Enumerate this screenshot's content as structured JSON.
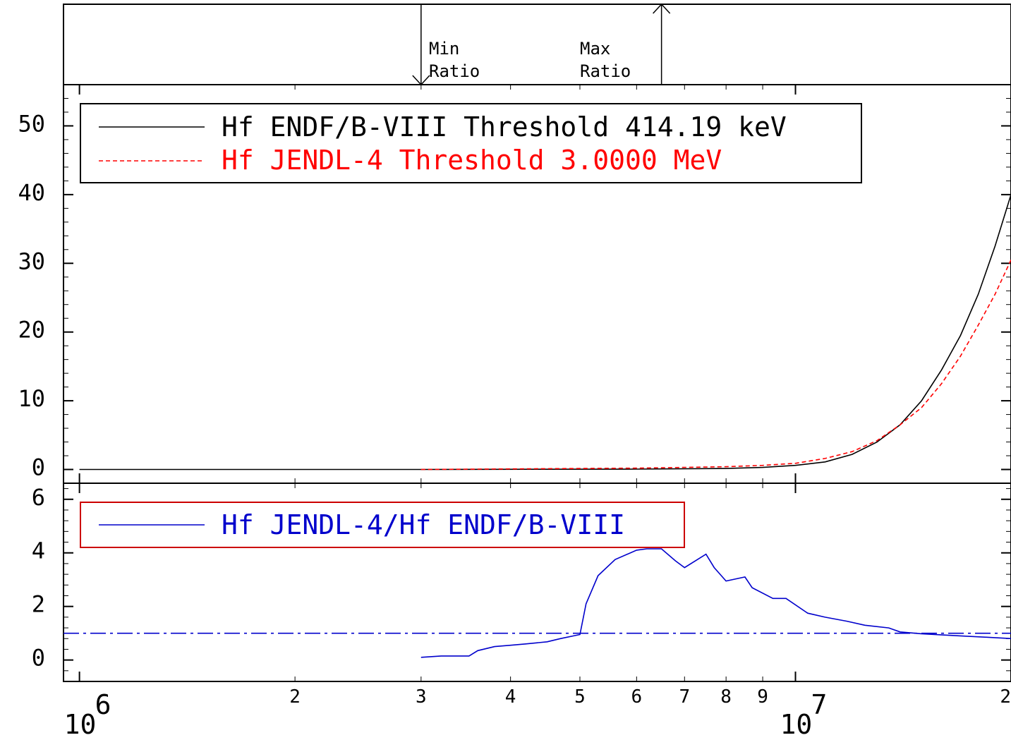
{
  "markers": {
    "min_line1": "Min",
    "min_line2": "Ratio",
    "max_line1": "Max",
    "max_line2": "Ratio",
    "min_energy": 3000000,
    "max_energy": 6500000
  },
  "x_axis": {
    "scale": "log",
    "range": [
      950000,
      20000000
    ],
    "decade_labels": [
      {
        "base": "10",
        "exp": "6",
        "value": 1000000
      },
      {
        "base": "10",
        "exp": "7",
        "value": 10000000
      }
    ],
    "minor_labels": [
      {
        "text": "2",
        "value": 2000000
      },
      {
        "text": "3",
        "value": 3000000
      },
      {
        "text": "4",
        "value": 4000000
      },
      {
        "text": "5",
        "value": 5000000
      },
      {
        "text": "6",
        "value": 6000000
      },
      {
        "text": "7",
        "value": 7000000
      },
      {
        "text": "8",
        "value": 8000000
      },
      {
        "text": "9",
        "value": 9000000
      },
      {
        "text": "2",
        "value": 20000000
      }
    ]
  },
  "colors": {
    "endf": "#000000",
    "jendl": "#ff0000",
    "ratio": "#0000cc",
    "ratio_legend_border": "#cc0000"
  },
  "chart_data": [
    {
      "type": "line",
      "ylim": [
        -2,
        56
      ],
      "y_ticks": [
        "0",
        "10",
        "20",
        "30",
        "40",
        "50"
      ],
      "y_tick_values": [
        0,
        10,
        20,
        30,
        40,
        50
      ],
      "legend_position": "top-left",
      "series": [
        {
          "name": "Hf ENDF/B-VIII Threshold 414.19 keV",
          "style": "solid",
          "x": [
            1000000,
            3000000,
            6000000,
            8000000,
            9000000,
            10000000,
            11000000,
            12000000,
            13000000,
            14000000,
            15000000,
            16000000,
            17000000,
            18000000,
            19000000,
            20000000
          ],
          "y": [
            0,
            0,
            0.05,
            0.15,
            0.3,
            0.6,
            1.1,
            2.2,
            4.0,
            6.5,
            10.0,
            14.5,
            19.5,
            25.5,
            32.5,
            40.0
          ]
        },
        {
          "name": "Hf JENDL-4 Threshold 3.0000 MeV",
          "style": "dashed",
          "x": [
            3000000,
            6000000,
            8000000,
            9000000,
            10000000,
            11000000,
            12000000,
            13000000,
            14000000,
            15000000,
            16000000,
            17000000,
            18000000,
            19000000,
            20000000
          ],
          "y": [
            0,
            0.2,
            0.4,
            0.6,
            0.9,
            1.6,
            2.6,
            4.2,
            6.5,
            9.0,
            12.5,
            16.5,
            21.0,
            25.5,
            30.5
          ]
        }
      ]
    },
    {
      "type": "line",
      "ylim": [
        -0.8,
        6.6
      ],
      "y_ticks": [
        "0",
        "2",
        "4",
        "6"
      ],
      "y_tick_values": [
        0,
        2,
        4,
        6
      ],
      "legend_position": "top-left",
      "reference_line": 1,
      "series": [
        {
          "name": "Hf JENDL-4/Hf ENDF/B-VIII",
          "style": "solid",
          "x": [
            3000000,
            3200000,
            3500000,
            3600000,
            3800000,
            4000000,
            4200000,
            4500000,
            4700000,
            5000000,
            5100000,
            5300000,
            5600000,
            6000000,
            6200000,
            6500000,
            6800000,
            7000000,
            7500000,
            7700000,
            8000000,
            8500000,
            8700000,
            9300000,
            9700000,
            10400000,
            11000000,
            11800000,
            12500000,
            13500000,
            14000000,
            15000000,
            17000000,
            18500000,
            20000000
          ],
          "y": [
            0.1,
            0.15,
            0.15,
            0.35,
            0.5,
            0.55,
            0.6,
            0.68,
            0.8,
            0.95,
            2.1,
            3.15,
            3.75,
            4.1,
            4.15,
            4.15,
            3.7,
            3.45,
            3.95,
            3.45,
            2.95,
            3.1,
            2.7,
            2.3,
            2.3,
            1.75,
            1.6,
            1.45,
            1.3,
            1.2,
            1.05,
            0.98,
            0.9,
            0.85,
            0.8
          ]
        }
      ]
    }
  ]
}
